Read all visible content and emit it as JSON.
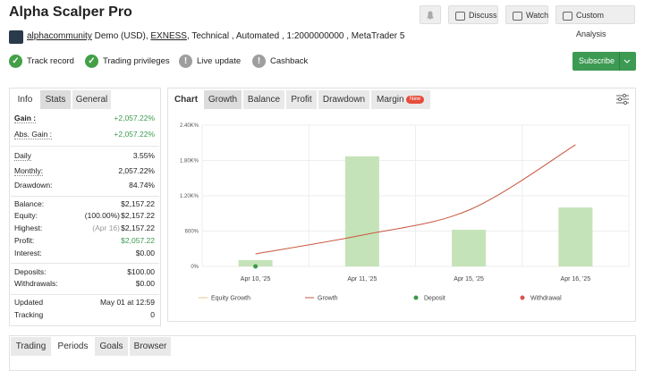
{
  "header": {
    "title": "Alpha Scalper Pro",
    "buttons": [
      "Discuss",
      "Watch",
      "Custom Analysis"
    ]
  },
  "meta": {
    "author": "alphacommunity",
    "account": "Demo (USD),",
    "broker": "EXNESS",
    "details": ", Technical , Automated , 1:2000000000 , MetaTrader 5"
  },
  "badges": [
    "Track record",
    "Trading privileges",
    "Live update",
    "Cashback"
  ],
  "subscribe": "Subscribe",
  "stats_tabs": [
    "Info",
    "Stats",
    "General"
  ],
  "stats": [
    {
      "label": "Gain :",
      "value": "+2,057.22%"
    },
    {
      "label": "Abs. Gain :",
      "value": "+2,057.22%"
    },
    {
      "label": "Daily",
      "value": "3.55%"
    },
    {
      "label": "Monthly:",
      "value": "2,057.22%"
    },
    {
      "label": "Drawdown:",
      "value": "84.74%"
    },
    {
      "label": "Balance:",
      "value": "$2,157.22"
    },
    {
      "label": "Equity:",
      "value": "$2,157.22",
      "note": "(100.00%)"
    },
    {
      "label": "Highest:",
      "value": "$2,157.22",
      "note": "(Apr 16)"
    },
    {
      "label": "Profit:",
      "value": "$2,057.22"
    },
    {
      "label": "Interest:",
      "value": "$0.00"
    },
    {
      "label": "Deposits:",
      "value": "$100.00"
    },
    {
      "label": "Withdrawals:",
      "value": "$0.00"
    },
    {
      "label": "Updated",
      "value": "May 01 at 12:59"
    },
    {
      "label": "Tracking",
      "value": "0"
    }
  ],
  "chart_tabs": [
    "Chart",
    "Growth",
    "Balance",
    "Profit",
    "Drawdown",
    "Margin"
  ],
  "new_badge": "New",
  "chart": {
    "type": "bar",
    "categories": [
      "Apr 10, '25",
      "Apr 11, '25",
      "Apr 15, '25",
      "Apr 16, '25"
    ],
    "bars": {
      "color": "#c5e3b8",
      "values": [
        106,
        1870,
        623,
        1000
      ]
    },
    "series": [
      {
        "name": "Equity Growth",
        "color": "#e6c98f",
        "type": "line",
        "values": [
          null,
          null,
          null,
          null
        ]
      },
      {
        "name": "Growth",
        "color": "#c8553d",
        "type": "line",
        "values": [
          213,
          532,
          957,
          2066
        ]
      },
      {
        "name": "Deposit",
        "color": "#3a9a4a",
        "type": "scatter",
        "values": [
          0,
          null,
          null,
          null
        ]
      },
      {
        "name": "Withdrawal",
        "color": "#d9534f",
        "type": "scatter",
        "values": [
          null,
          null,
          null,
          null
        ]
      }
    ],
    "ylim": [
      0,
      2400
    ],
    "yticks": [
      {
        "value": 0,
        "label": "0%"
      },
      {
        "value": 600,
        "label": "600%"
      },
      {
        "value": 1200,
        "label": "1.20K%"
      },
      {
        "value": 1800,
        "label": "1.80K%"
      },
      {
        "value": 2400,
        "label": "2.40K%"
      }
    ],
    "grid": true
  },
  "bottom_tabs": [
    "Trading",
    "Periods",
    "Goals",
    "Browser"
  ]
}
